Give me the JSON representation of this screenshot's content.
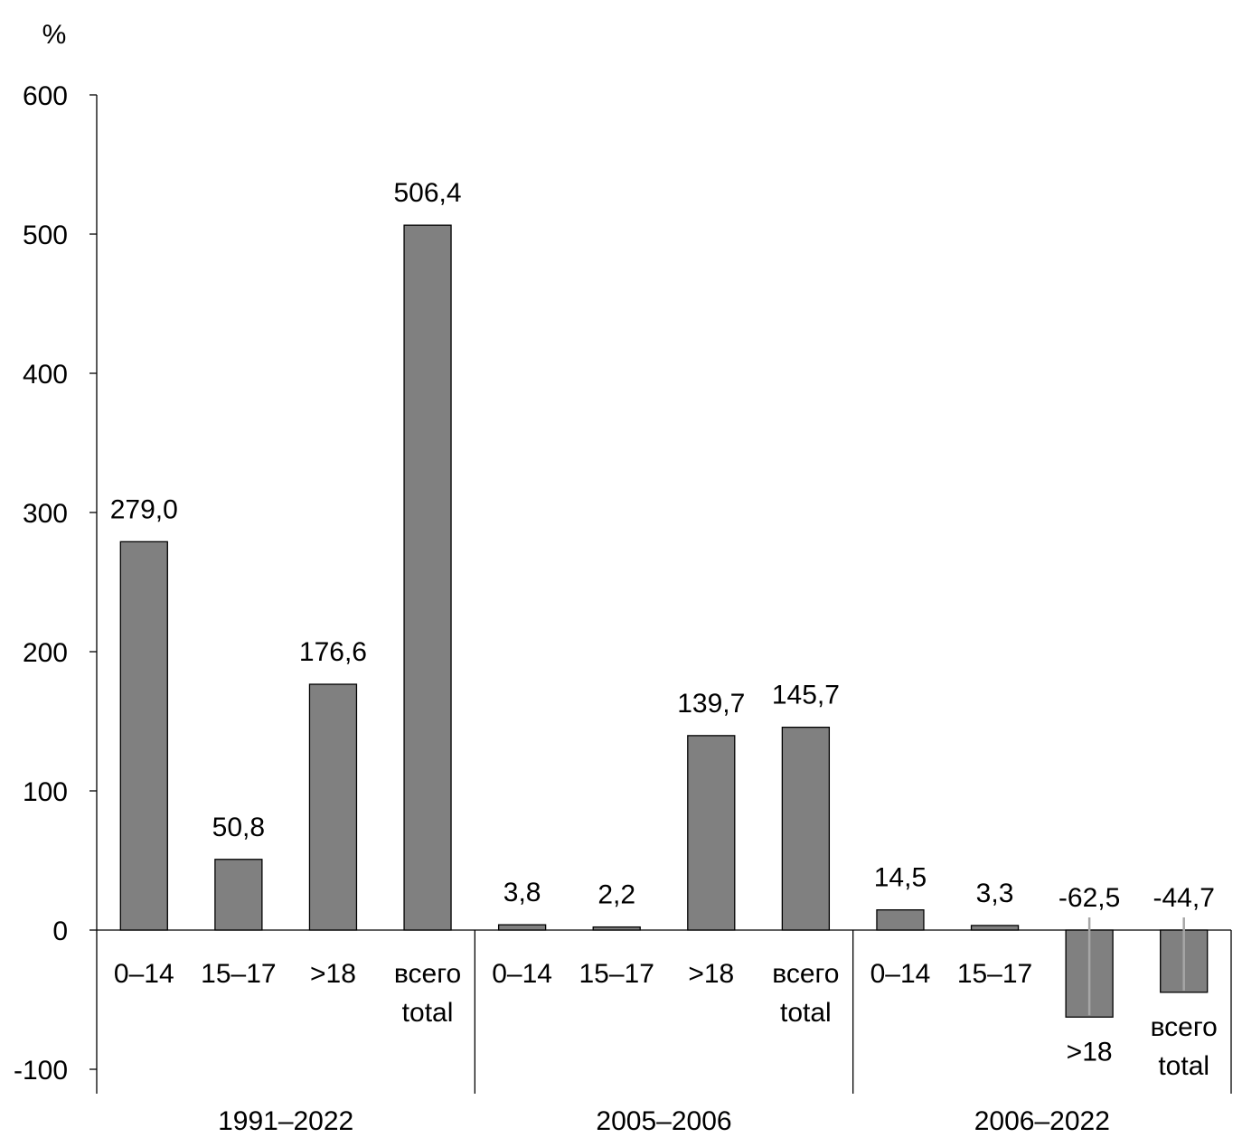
{
  "chart_data": {
    "type": "bar",
    "unit": "%",
    "ylim": [
      -100,
      600
    ],
    "yticks": [
      -100,
      0,
      100,
      200,
      300,
      400,
      500,
      600
    ],
    "ytick_labels": [
      "-100",
      "0",
      "100",
      "200",
      "300",
      "400",
      "500",
      "600"
    ],
    "grid": false,
    "legend": "none",
    "bar_color": "#808080",
    "groups": [
      {
        "label": "1991–2022",
        "categories": [
          {
            "lines": [
              "0–14"
            ]
          },
          {
            "lines": [
              "15–17"
            ]
          },
          {
            "lines": [
              ">18"
            ]
          },
          {
            "lines": [
              "всего",
              "total"
            ]
          }
        ],
        "values": [
          279.0,
          50.8,
          176.6,
          506.4
        ],
        "value_labels": [
          "279,0",
          "50,8",
          "176,6",
          "506,4"
        ]
      },
      {
        "label": "2005–2006",
        "categories": [
          {
            "lines": [
              "0–14"
            ]
          },
          {
            "lines": [
              "15–17"
            ]
          },
          {
            "lines": [
              ">18"
            ]
          },
          {
            "lines": [
              "всего",
              "total"
            ]
          }
        ],
        "values": [
          3.8,
          2.2,
          139.7,
          145.7
        ],
        "value_labels": [
          "3,8",
          "2,2",
          "139,7",
          "145,7"
        ]
      },
      {
        "label": "2006–2022",
        "categories": [
          {
            "lines": [
              "0–14"
            ]
          },
          {
            "lines": [
              "15–17"
            ]
          },
          {
            "lines": [
              ">18"
            ]
          },
          {
            "lines": [
              "всего",
              "total"
            ]
          }
        ],
        "values": [
          14.5,
          3.3,
          -62.5,
          -44.7
        ],
        "value_labels": [
          "14,5",
          "3,3",
          "-62,5",
          "-44,7"
        ]
      }
    ]
  }
}
